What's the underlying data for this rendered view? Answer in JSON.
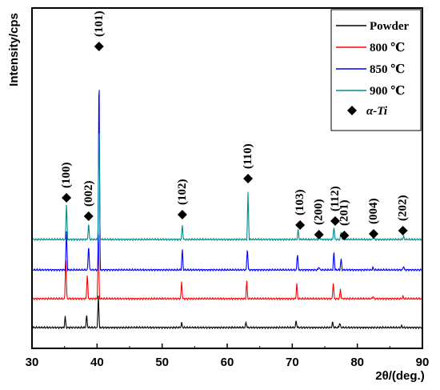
{
  "chart_data": {
    "type": "line",
    "xlabel": "2θ/(deg.)",
    "ylabel": "Intensity/cps",
    "xlim": [
      30,
      90
    ],
    "xticks": [
      30,
      40,
      50,
      60,
      70,
      80,
      90
    ],
    "y_scale": "arbitrary units, curves vertically offset",
    "grid": false,
    "legend_position": "top-right",
    "legend_marker": {
      "symbol": "diamond",
      "label": "α-Ti"
    },
    "series": [
      {
        "name": "Powder",
        "color": "#000000",
        "baseline": 0,
        "peaks": [
          [
            35.1,
            14
          ],
          [
            38.4,
            16
          ],
          [
            40.2,
            42
          ],
          [
            53.0,
            6
          ],
          [
            62.9,
            7
          ],
          [
            70.6,
            9
          ],
          [
            76.2,
            7
          ],
          [
            77.3,
            6
          ],
          [
            86.8,
            2
          ]
        ]
      },
      {
        "name": "800 ℃",
        "color": "#ff0000",
        "baseline": 36,
        "peaks": [
          [
            35.2,
            56
          ],
          [
            38.5,
            33
          ],
          [
            40.2,
            82
          ],
          [
            53.0,
            22
          ],
          [
            63.0,
            23
          ],
          [
            70.7,
            19
          ],
          [
            76.3,
            21
          ],
          [
            77.4,
            12
          ],
          [
            82.4,
            3
          ],
          [
            87.0,
            3
          ]
        ]
      },
      {
        "name": "850 ℃",
        "color": "#0000ff",
        "baseline": 72,
        "peaks": [
          [
            35.3,
            52
          ],
          [
            38.7,
            33
          ],
          [
            40.3,
            270
          ],
          [
            53.1,
            27
          ],
          [
            63.1,
            29
          ],
          [
            70.8,
            22
          ],
          [
            74.1,
            4
          ],
          [
            76.4,
            24
          ],
          [
            77.5,
            15
          ],
          [
            82.4,
            3
          ],
          [
            87.1,
            5
          ]
        ]
      },
      {
        "name": "900 ℃",
        "color": "#008b8b",
        "baseline": 110,
        "peaks": [
          [
            35.3,
            48
          ],
          [
            38.7,
            21
          ],
          [
            40.3,
            158
          ],
          [
            53.1,
            19
          ],
          [
            63.2,
            60
          ],
          [
            70.9,
            13
          ],
          [
            74.2,
            4
          ],
          [
            76.4,
            17
          ],
          [
            77.5,
            10
          ],
          [
            82.5,
            3
          ],
          [
            87.1,
            4
          ]
        ]
      }
    ],
    "annotations": [
      {
        "label": "(100)",
        "x": 35.3,
        "y": 162
      },
      {
        "label": "(002)",
        "x": 38.7,
        "y": 139
      },
      {
        "label": "(101)",
        "x": 40.3,
        "y": 351
      },
      {
        "label": "(102)",
        "x": 53.1,
        "y": 141
      },
      {
        "label": "(110)",
        "x": 63.2,
        "y": 186
      },
      {
        "label": "(103)",
        "x": 71.2,
        "y": 128
      },
      {
        "label": "(200)",
        "x": 74.1,
        "y": 116
      },
      {
        "label": "(112)",
        "x": 76.6,
        "y": 133
      },
      {
        "label": "(201)",
        "x": 78.0,
        "y": 115
      },
      {
        "label": "(004)",
        "x": 82.5,
        "y": 117
      },
      {
        "label": "(202)",
        "x": 87.0,
        "y": 121
      }
    ]
  }
}
